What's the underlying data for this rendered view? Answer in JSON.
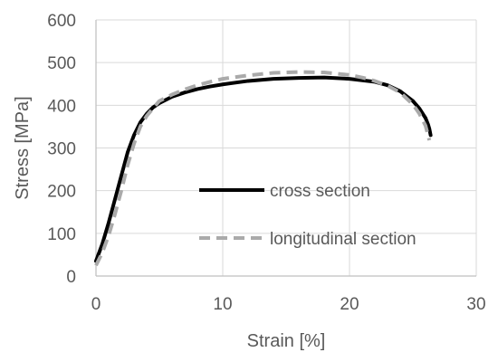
{
  "chart_data": {
    "type": "line",
    "title": "",
    "xlabel": "Strain [%]",
    "ylabel": "Stress [MPa]",
    "xlim": [
      0,
      30
    ],
    "ylim": [
      0,
      600
    ],
    "xticks": [
      0,
      10,
      20,
      30
    ],
    "yticks": [
      0,
      100,
      200,
      300,
      400,
      500,
      600
    ],
    "grid": "horizontal",
    "legend_position": "inside-center-right",
    "series": [
      {
        "name": "cross section",
        "color": "#000000",
        "dash": "solid",
        "x": [
          0.0,
          0.5,
          1.0,
          1.5,
          2.0,
          2.5,
          3.0,
          3.5,
          4.0,
          4.5,
          5.0,
          6.0,
          7.0,
          8.0,
          9.0,
          10.0,
          12.0,
          14.0,
          16.0,
          18.0,
          20.0,
          22.0,
          23.0,
          24.0,
          25.0,
          25.5,
          26.0,
          26.2,
          26.3,
          26.4
        ],
        "y": [
          35,
          75,
          125,
          180,
          235,
          290,
          330,
          360,
          380,
          395,
          405,
          420,
          430,
          438,
          444,
          449,
          457,
          462,
          464,
          465,
          462,
          455,
          447,
          433,
          410,
          393,
          370,
          355,
          345,
          330
        ]
      },
      {
        "name": "longitudinal section",
        "color": "#aaaaaa",
        "dash": "dashed",
        "x": [
          0.0,
          0.5,
          1.0,
          1.5,
          2.0,
          2.5,
          3.0,
          3.5,
          4.0,
          4.5,
          5.0,
          6.0,
          7.0,
          8.0,
          9.0,
          10.0,
          12.0,
          14.0,
          16.0,
          18.0,
          20.0,
          21.0,
          22.0,
          23.0,
          24.0,
          25.0,
          25.5,
          26.0,
          26.3
        ],
        "y": [
          25,
          55,
          95,
          145,
          200,
          260,
          310,
          350,
          375,
          393,
          410,
          425,
          437,
          447,
          455,
          462,
          470,
          476,
          478,
          477,
          471,
          465,
          457,
          446,
          430,
          402,
          381,
          352,
          318
        ]
      }
    ]
  }
}
